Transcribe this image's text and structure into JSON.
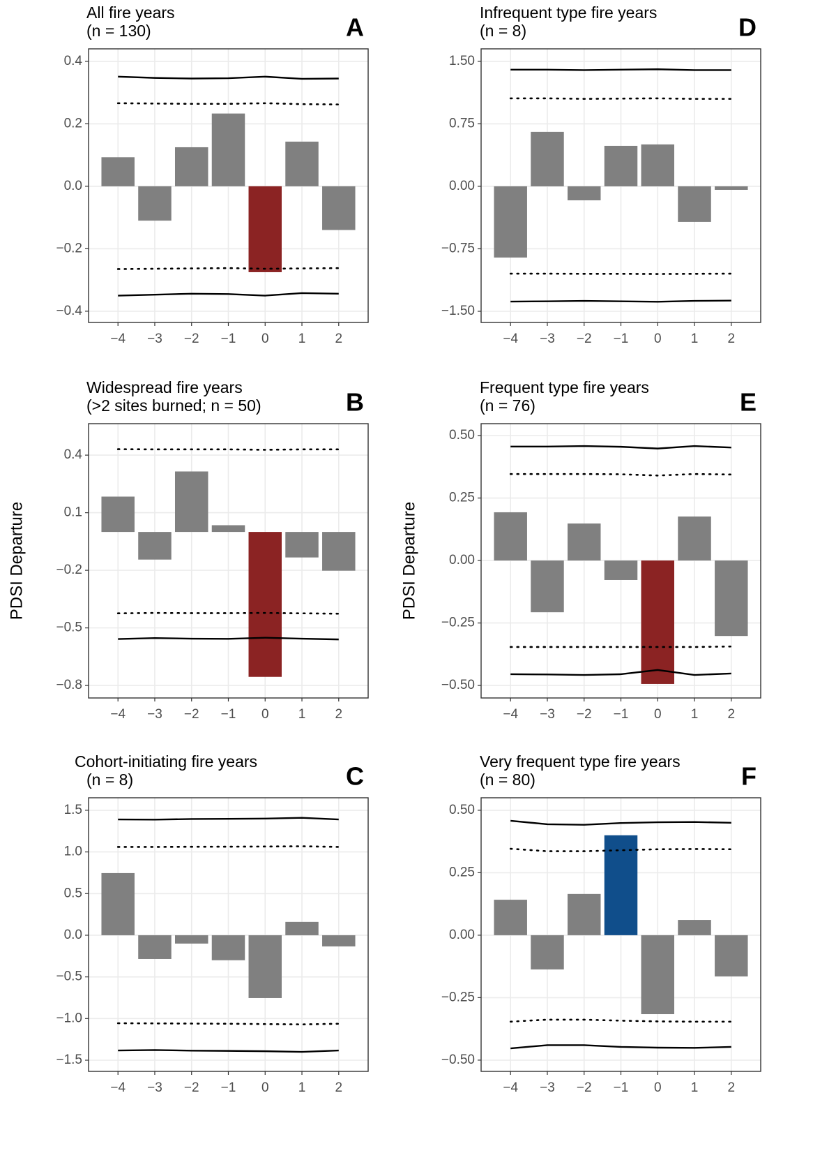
{
  "chart_data": [
    {
      "type": "bar",
      "title": "All fire years",
      "subtitle": "(n = 130)",
      "panel_label": "A",
      "x": [
        -4,
        -3,
        -2,
        -1,
        0,
        1,
        2
      ],
      "values": [
        0.093,
        -0.11,
        0.125,
        0.233,
        -0.275,
        0.143,
        -0.14
      ],
      "colors": [
        "#808080",
        "#808080",
        "#808080",
        "#808080",
        "#8b2323",
        "#808080",
        "#808080"
      ],
      "lines": [
        {
          "style": "solid",
          "values": [
            0.351,
            0.347,
            0.345,
            0.346,
            0.351,
            0.344,
            0.345
          ]
        },
        {
          "style": "dotted",
          "values": [
            0.266,
            0.265,
            0.264,
            0.264,
            0.266,
            0.263,
            0.262
          ]
        },
        {
          "style": "dotted",
          "values": [
            -0.265,
            -0.264,
            -0.263,
            -0.262,
            -0.264,
            -0.263,
            -0.262
          ]
        },
        {
          "style": "solid",
          "values": [
            -0.35,
            -0.347,
            -0.344,
            -0.345,
            -0.35,
            -0.342,
            -0.344
          ]
        }
      ],
      "xlim": [
        -4.8,
        2.8
      ],
      "xticks": [
        {
          "value": -4,
          "label": "−4"
        },
        {
          "value": -3,
          "label": "−3"
        },
        {
          "value": -2,
          "label": "−2"
        },
        {
          "value": -1,
          "label": "−1"
        },
        0,
        1,
        2
      ],
      "ylim": [
        -0.436,
        0.44
      ],
      "yticks": [
        {
          "value": -0.4,
          "label": "−0.4"
        },
        {
          "value": -0.2,
          "label": "−0.2"
        },
        {
          "value": 0,
          "label": "0.0"
        },
        0.2,
        0.4
      ],
      "grid": true
    },
    {
      "type": "bar",
      "title": "Widespread fire years",
      "subtitle": "(>2 sites burned; n = 50)",
      "panel_label": "B",
      "ylabel": "PDSI Departure",
      "x": [
        -4,
        -3,
        -2,
        -1,
        0,
        1,
        2
      ],
      "values": [
        0.184,
        -0.144,
        0.315,
        0.035,
        -0.755,
        -0.133,
        -0.202
      ],
      "colors": [
        "#808080",
        "#808080",
        "#808080",
        "#808080",
        "#8b2323",
        "#808080",
        "#808080"
      ],
      "lines": [
        {
          "style": "dotted",
          "values": [
            0.431,
            0.43,
            0.43,
            0.43,
            0.428,
            0.43,
            0.43
          ]
        },
        {
          "style": "dotted",
          "values": [
            -0.424,
            -0.422,
            -0.423,
            -0.423,
            -0.422,
            -0.424,
            -0.426
          ]
        },
        {
          "style": "solid",
          "values": [
            -0.558,
            -0.553,
            -0.556,
            -0.557,
            -0.551,
            -0.556,
            -0.56
          ]
        }
      ],
      "xlim": [
        -4.8,
        2.8
      ],
      "xticks": [
        {
          "value": -4,
          "label": "−4"
        },
        {
          "value": -3,
          "label": "−3"
        },
        {
          "value": -2,
          "label": "−2"
        },
        {
          "value": -1,
          "label": "−1"
        },
        0,
        1,
        2
      ],
      "ylim": [
        -0.865,
        0.564
      ],
      "yticks": [
        {
          "value": -0.8,
          "label": "−0.8"
        },
        {
          "value": -0.5,
          "label": "−0.5"
        },
        {
          "value": -0.2,
          "label": "−0.2"
        },
        0.1,
        0.4
      ],
      "grid": true
    },
    {
      "type": "bar",
      "title": "Cohort-initiating fire years",
      "subtitle": "(n = 8)",
      "panel_label": "C",
      "x": [
        -4,
        -3,
        -2,
        -1,
        0,
        1,
        2
      ],
      "values": [
        0.746,
        -0.285,
        -0.1,
        -0.3,
        -0.754,
        0.16,
        -0.134
      ],
      "colors": [
        "#808080",
        "#808080",
        "#808080",
        "#808080",
        "#808080",
        "#808080",
        "#808080"
      ],
      "lines": [
        {
          "style": "solid",
          "values": [
            1.39,
            1.388,
            1.395,
            1.397,
            1.4,
            1.41,
            1.39
          ]
        },
        {
          "style": "dotted",
          "values": [
            1.06,
            1.06,
            1.062,
            1.063,
            1.065,
            1.068,
            1.06
          ]
        },
        {
          "style": "dotted",
          "values": [
            -1.056,
            -1.058,
            -1.06,
            -1.062,
            -1.066,
            -1.07,
            -1.062
          ]
        },
        {
          "style": "solid",
          "values": [
            -1.383,
            -1.378,
            -1.385,
            -1.388,
            -1.392,
            -1.4,
            -1.383
          ]
        }
      ],
      "xlim": [
        -4.8,
        2.8
      ],
      "xticks": [
        {
          "value": -4,
          "label": "−4"
        },
        {
          "value": -3,
          "label": "−3"
        },
        {
          "value": -2,
          "label": "−2"
        },
        {
          "value": -1,
          "label": "−1"
        },
        0,
        1,
        2
      ],
      "ylim": [
        -1.634,
        1.65
      ],
      "yticks": [
        {
          "value": -1.5,
          "label": "−1.5"
        },
        {
          "value": -1,
          "label": "−1.0"
        },
        {
          "value": -0.5,
          "label": "−0.5"
        },
        {
          "value": 0,
          "label": "0.0"
        },
        0.5,
        {
          "value": 1,
          "label": "1.0"
        },
        1.5
      ],
      "grid": true
    },
    {
      "type": "bar",
      "title": "Infrequent type fire years",
      "subtitle": "(n = 8)",
      "panel_label": "D",
      "x": [
        -4,
        -3,
        -2,
        -1,
        0,
        1,
        2
      ],
      "values": [
        -0.855,
        0.654,
        -0.168,
        0.486,
        0.503,
        -0.427,
        -0.042
      ],
      "colors": [
        "#808080",
        "#808080",
        "#808080",
        "#808080",
        "#808080",
        "#808080",
        "#808080"
      ],
      "lines": [
        {
          "style": "solid",
          "values": [
            1.4,
            1.4,
            1.395,
            1.4,
            1.405,
            1.395,
            1.395
          ]
        },
        {
          "style": "dotted",
          "values": [
            1.056,
            1.056,
            1.05,
            1.053,
            1.056,
            1.05,
            1.05
          ]
        },
        {
          "style": "dotted",
          "values": [
            -1.048,
            -1.048,
            -1.05,
            -1.05,
            -1.052,
            -1.05,
            -1.048
          ]
        },
        {
          "style": "solid",
          "values": [
            -1.383,
            -1.38,
            -1.375,
            -1.38,
            -1.385,
            -1.375,
            -1.372
          ]
        }
      ],
      "xlim": [
        -4.8,
        2.8
      ],
      "xticks": [
        {
          "value": -4,
          "label": "−4"
        },
        {
          "value": -3,
          "label": "−3"
        },
        {
          "value": -2,
          "label": "−2"
        },
        {
          "value": -1,
          "label": "−1"
        },
        0,
        1,
        2
      ],
      "ylim": [
        -1.634,
        1.65
      ],
      "yticks": [
        {
          "value": -1.5,
          "label": "−1.50"
        },
        {
          "value": -0.75,
          "label": "−0.75"
        },
        {
          "value": 0,
          "label": "0.00"
        },
        0.75,
        {
          "value": 1.5,
          "label": "1.50"
        }
      ],
      "grid": true
    },
    {
      "type": "bar",
      "title": "Frequent type fire years",
      "subtitle": "(n = 76)",
      "panel_label": "E",
      "ylabel": "PDSI Departure",
      "x": [
        -4,
        -3,
        -2,
        -1,
        0,
        1,
        2
      ],
      "values": [
        0.193,
        -0.207,
        0.148,
        -0.078,
        -0.494,
        0.176,
        -0.302
      ],
      "colors": [
        "#808080",
        "#808080",
        "#808080",
        "#808080",
        "#8b2323",
        "#808080",
        "#808080"
      ],
      "lines": [
        {
          "style": "solid",
          "values": [
            0.456,
            0.456,
            0.458,
            0.455,
            0.448,
            0.458,
            0.452
          ]
        },
        {
          "style": "dotted",
          "values": [
            0.346,
            0.346,
            0.346,
            0.345,
            0.34,
            0.346,
            0.344
          ]
        },
        {
          "style": "dotted",
          "values": [
            -0.346,
            -0.346,
            -0.346,
            -0.346,
            -0.346,
            -0.346,
            -0.344
          ]
        },
        {
          "style": "solid",
          "values": [
            -0.455,
            -0.456,
            -0.458,
            -0.455,
            -0.438,
            -0.458,
            -0.452
          ]
        }
      ],
      "xlim": [
        -4.8,
        2.8
      ],
      "xticks": [
        {
          "value": -4,
          "label": "−4"
        },
        {
          "value": -3,
          "label": "−3"
        },
        {
          "value": -2,
          "label": "−2"
        },
        {
          "value": -1,
          "label": "−1"
        },
        0,
        1,
        2
      ],
      "ylim": [
        -0.55,
        0.5475
      ],
      "yticks": [
        {
          "value": -0.5,
          "label": "−0.50"
        },
        {
          "value": -0.25,
          "label": "−0.25"
        },
        {
          "value": 0,
          "label": "0.00"
        },
        0.25,
        {
          "value": 0.5,
          "label": "0.50"
        }
      ],
      "grid": true
    },
    {
      "type": "bar",
      "title": "Very frequent type fire years",
      "subtitle": "(n = 80)",
      "panel_label": "F",
      "x": [
        -4,
        -3,
        -2,
        -1,
        0,
        1,
        2
      ],
      "values": [
        0.142,
        -0.137,
        0.165,
        0.4,
        -0.316,
        0.061,
        -0.165
      ],
      "colors": [
        "#808080",
        "#808080",
        "#808080",
        "#104e8b",
        "#808080",
        "#808080",
        "#808080"
      ],
      "lines": [
        {
          "style": "solid",
          "values": [
            0.458,
            0.444,
            0.442,
            0.449,
            0.452,
            0.453,
            0.45
          ]
        },
        {
          "style": "dotted",
          "values": [
            0.346,
            0.336,
            0.336,
            0.34,
            0.344,
            0.345,
            0.344
          ]
        },
        {
          "style": "dotted",
          "values": [
            -0.346,
            -0.338,
            -0.338,
            -0.342,
            -0.345,
            -0.346,
            -0.346
          ]
        },
        {
          "style": "solid",
          "values": [
            -0.453,
            -0.44,
            -0.44,
            -0.447,
            -0.45,
            -0.451,
            -0.447
          ]
        }
      ],
      "xlim": [
        -4.8,
        2.8
      ],
      "xticks": [
        {
          "value": -4,
          "label": "−4"
        },
        {
          "value": -3,
          "label": "−3"
        },
        {
          "value": -2,
          "label": "−2"
        },
        {
          "value": -1,
          "label": "−1"
        },
        0,
        1,
        2
      ],
      "ylim": [
        -0.545,
        0.55
      ],
      "yticks": [
        {
          "value": -0.5,
          "label": "−0.50"
        },
        {
          "value": -0.25,
          "label": "−0.25"
        },
        {
          "value": 0,
          "label": "0.00"
        },
        0.25,
        {
          "value": 0.5,
          "label": "0.50"
        }
      ],
      "grid": true
    }
  ]
}
